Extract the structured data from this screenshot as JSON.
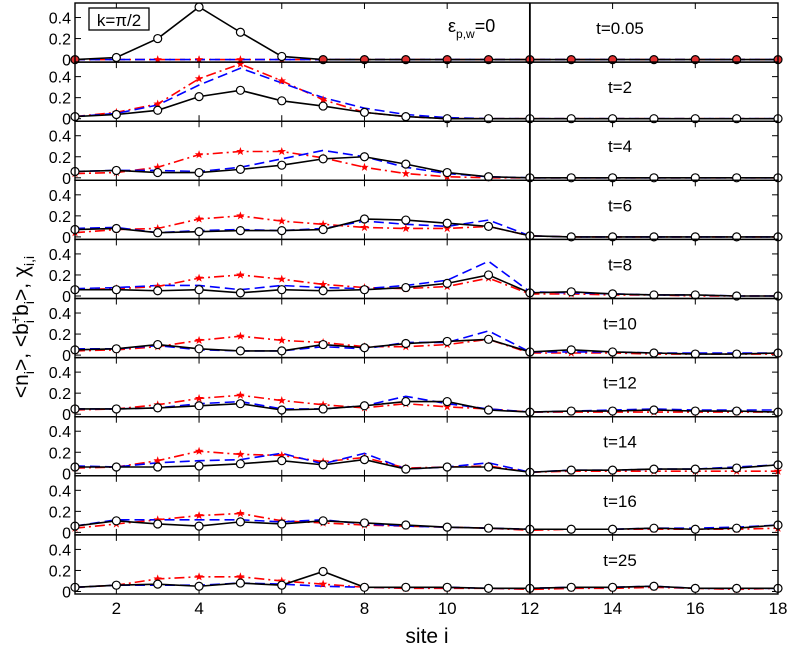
{
  "figure": {
    "ylabel_main": "<n",
    "ylabel_sub_i1": "i",
    "ylabel_mid1": ">, <b",
    "ylabel_sub_i2": "i",
    "ylabel_sup_plus": "+",
    "ylabel_mid2": "b",
    "ylabel_sub_i3": "i",
    "ylabel_mid3": ">, χ",
    "ylabel_sub_ii": "i,i",
    "xlabel": "site i",
    "k_label": "k=π/2",
    "eps_main": "ε",
    "eps_sub": "p,w",
    "eps_tail": "=0"
  },
  "colors": {
    "n": "#000000",
    "bb": "#0000ff",
    "chi": "#ff0000",
    "marker_fill": "#e03030"
  },
  "chart_data": {
    "type": "line",
    "x": [
      1,
      2,
      3,
      4,
      5,
      6,
      7,
      8,
      9,
      10,
      11,
      12,
      13,
      14,
      15,
      16,
      17,
      18
    ],
    "xlim": [
      1,
      18
    ],
    "xticks": [
      2,
      4,
      6,
      8,
      10,
      12,
      14,
      16,
      18
    ],
    "ylim": [
      0,
      0.5
    ],
    "yticks": [
      "0",
      "0.2",
      "0.4"
    ],
    "vline_x": 12,
    "series_styles": [
      {
        "key": "n",
        "style": "solid",
        "marker": "circle"
      },
      {
        "key": "bb",
        "style": "dashed"
      },
      {
        "key": "chi",
        "style": "dashdot",
        "marker": "star"
      }
    ],
    "panels": [
      {
        "label": "t=0.05",
        "n": [
          0,
          0.02,
          0.2,
          0.5,
          0.26,
          0.03,
          0,
          0,
          0,
          0,
          0,
          0,
          0,
          0,
          0,
          0,
          0,
          0
        ],
        "bb": [
          0,
          0,
          0,
          0,
          0,
          0,
          0,
          0,
          0,
          0,
          0,
          0,
          0,
          0,
          0,
          0,
          0,
          0
        ],
        "chi": [
          0,
          0,
          0,
          0,
          0,
          0,
          0,
          0,
          0,
          0,
          0,
          0,
          0,
          0,
          0,
          0,
          0,
          0
        ]
      },
      {
        "label": "t=2",
        "n": [
          0.02,
          0.04,
          0.08,
          0.21,
          0.27,
          0.17,
          0.12,
          0.06,
          0.02,
          0,
          0,
          0,
          0,
          0,
          0,
          0,
          0,
          0
        ],
        "bb": [
          0.02,
          0.05,
          0.13,
          0.32,
          0.48,
          0.34,
          0.2,
          0.1,
          0.04,
          0.01,
          0,
          0,
          0,
          0,
          0,
          0,
          0,
          0
        ],
        "chi": [
          0.02,
          0.06,
          0.14,
          0.38,
          0.52,
          0.36,
          0.18,
          0.06,
          0.02,
          0,
          0,
          0,
          0,
          0,
          0,
          0,
          0,
          0
        ]
      },
      {
        "label": "t=4",
        "n": [
          0.06,
          0.07,
          0.05,
          0.05,
          0.08,
          0.12,
          0.18,
          0.2,
          0.13,
          0.05,
          0.01,
          0,
          0,
          0,
          0,
          0,
          0,
          0
        ],
        "bb": [
          0.06,
          0.07,
          0.07,
          0.06,
          0.1,
          0.18,
          0.26,
          0.2,
          0.1,
          0.04,
          0.01,
          0,
          0,
          0,
          0,
          0,
          0,
          0
        ],
        "chi": [
          0.04,
          0.05,
          0.1,
          0.22,
          0.25,
          0.25,
          0.19,
          0.1,
          0.04,
          0.01,
          0,
          0,
          0,
          0,
          0,
          0,
          0,
          0
        ]
      },
      {
        "label": "t=6",
        "n": [
          0.07,
          0.08,
          0.04,
          0.05,
          0.06,
          0.06,
          0.07,
          0.17,
          0.16,
          0.13,
          0.1,
          0.01,
          0,
          0,
          0,
          0,
          0,
          0
        ],
        "bb": [
          0.08,
          0.09,
          0.04,
          0.06,
          0.07,
          0.06,
          0.08,
          0.15,
          0.12,
          0.1,
          0.16,
          0.01,
          0,
          0,
          0,
          0,
          0,
          0
        ],
        "chi": [
          0.04,
          0.07,
          0.08,
          0.17,
          0.2,
          0.15,
          0.12,
          0.09,
          0.08,
          0.08,
          0.1,
          0.01,
          0,
          0,
          0,
          0,
          0,
          0
        ]
      },
      {
        "label": "t=8",
        "n": [
          0.06,
          0.06,
          0.05,
          0.06,
          0.03,
          0.06,
          0.05,
          0.06,
          0.08,
          0.12,
          0.2,
          0.03,
          0.04,
          0.02,
          0.01,
          0.01,
          0,
          0
        ],
        "bb": [
          0.07,
          0.08,
          0.1,
          0.1,
          0.06,
          0.1,
          0.08,
          0.07,
          0.1,
          0.15,
          0.33,
          0.04,
          0.03,
          0.02,
          0.01,
          0.01,
          0,
          0
        ],
        "chi": [
          0.06,
          0.07,
          0.09,
          0.17,
          0.2,
          0.16,
          0.11,
          0.08,
          0.07,
          0.09,
          0.17,
          0.02,
          0.02,
          0.01,
          0.01,
          0,
          0,
          0
        ]
      },
      {
        "label": "t=10",
        "n": [
          0.05,
          0.06,
          0.1,
          0.06,
          0.04,
          0.04,
          0.1,
          0.07,
          0.11,
          0.13,
          0.15,
          0.03,
          0.05,
          0.03,
          0.02,
          0.01,
          0.01,
          0.02
        ],
        "bb": [
          0.06,
          0.06,
          0.09,
          0.05,
          0.04,
          0.04,
          0.08,
          0.06,
          0.12,
          0.12,
          0.23,
          0.03,
          0.03,
          0.03,
          0.02,
          0.02,
          0.02,
          0.02
        ],
        "chi": [
          0.04,
          0.05,
          0.08,
          0.14,
          0.18,
          0.14,
          0.12,
          0.08,
          0.08,
          0.1,
          0.15,
          0.02,
          0.02,
          0.02,
          0.01,
          0.01,
          0.01,
          0.01
        ]
      },
      {
        "label": "t=12",
        "n": [
          0.05,
          0.05,
          0.06,
          0.08,
          0.1,
          0.04,
          0.05,
          0.08,
          0.12,
          0.12,
          0.04,
          0.02,
          0.03,
          0.03,
          0.04,
          0.03,
          0.03,
          0.02
        ],
        "bb": [
          0.05,
          0.05,
          0.06,
          0.1,
          0.12,
          0.05,
          0.05,
          0.08,
          0.17,
          0.1,
          0.05,
          0.02,
          0.03,
          0.04,
          0.05,
          0.04,
          0.04,
          0.04
        ],
        "chi": [
          0.04,
          0.05,
          0.09,
          0.15,
          0.18,
          0.13,
          0.09,
          0.06,
          0.1,
          0.07,
          0.05,
          0.02,
          0.02,
          0.02,
          0.02,
          0.02,
          0.02,
          0.02
        ]
      },
      {
        "label": "t=14",
        "n": [
          0.06,
          0.06,
          0.06,
          0.07,
          0.09,
          0.12,
          0.08,
          0.13,
          0.04,
          0.06,
          0.06,
          0.01,
          0.03,
          0.03,
          0.04,
          0.04,
          0.05,
          0.08
        ],
        "bb": [
          0.07,
          0.06,
          0.1,
          0.12,
          0.13,
          0.19,
          0.09,
          0.19,
          0.04,
          0.06,
          0.1,
          0.01,
          0.03,
          0.03,
          0.04,
          0.04,
          0.06,
          0.08
        ],
        "chi": [
          0.05,
          0.06,
          0.12,
          0.21,
          0.18,
          0.17,
          0.11,
          0.15,
          0.05,
          0.06,
          0.07,
          0.01,
          0.02,
          0.02,
          0.02,
          0.02,
          0.02,
          0.02
        ]
      },
      {
        "label": "t=16",
        "n": [
          0.06,
          0.11,
          0.08,
          0.06,
          0.1,
          0.08,
          0.11,
          0.09,
          0.07,
          0.05,
          0.04,
          0.03,
          0.03,
          0.03,
          0.04,
          0.03,
          0.04,
          0.07
        ],
        "bb": [
          0.06,
          0.12,
          0.12,
          0.12,
          0.12,
          0.1,
          0.12,
          0.08,
          0.06,
          0.05,
          0.04,
          0.03,
          0.03,
          0.03,
          0.04,
          0.04,
          0.05,
          0.07
        ],
        "chi": [
          0.04,
          0.08,
          0.12,
          0.16,
          0.18,
          0.11,
          0.09,
          0.07,
          0.06,
          0.05,
          0.04,
          0.02,
          0.03,
          0.03,
          0.03,
          0.03,
          0.03,
          0.04
        ]
      },
      {
        "label": "t=25",
        "n": [
          0.04,
          0.06,
          0.07,
          0.05,
          0.08,
          0.06,
          0.19,
          0.04,
          0.04,
          0.04,
          0.03,
          0.03,
          0.04,
          0.04,
          0.05,
          0.03,
          0.03,
          0.03
        ],
        "bb": [
          0.04,
          0.06,
          0.06,
          0.06,
          0.08,
          0.07,
          0.05,
          0.04,
          0.04,
          0.04,
          0.03,
          0.03,
          0.04,
          0.04,
          0.05,
          0.03,
          0.03,
          0.03
        ],
        "chi": [
          0.04,
          0.06,
          0.12,
          0.14,
          0.14,
          0.1,
          0.07,
          0.04,
          0.03,
          0.03,
          0.03,
          0.02,
          0.03,
          0.03,
          0.04,
          0.03,
          0.02,
          0.03
        ]
      }
    ]
  }
}
